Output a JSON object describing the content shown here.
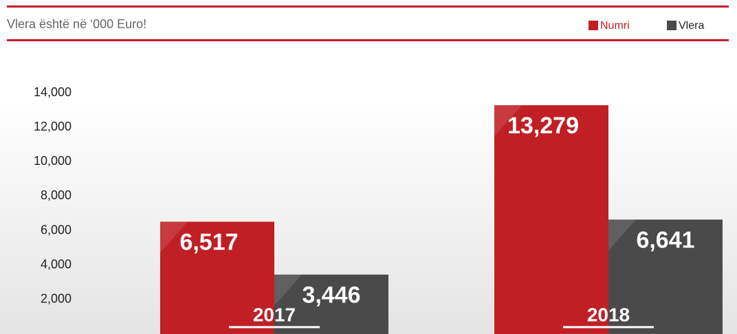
{
  "chart_data": {
    "type": "bar",
    "title": "Vlera është në ‘000 Euro!",
    "categories": [
      "2017",
      "2018"
    ],
    "series": [
      {
        "name": "Numri",
        "color": "#c01f26",
        "values": [
          6517,
          13279
        ],
        "value_labels": [
          "6,517",
          "13,279"
        ]
      },
      {
        "name": "Vlera",
        "color": "#4a4a4a",
        "values": [
          3446,
          6641
        ],
        "value_labels": [
          "3,446",
          "6,641"
        ]
      }
    ],
    "ylim": [
      0,
      14000
    ],
    "yticks": [
      {
        "value": 2000,
        "label": "2,000"
      },
      {
        "value": 4000,
        "label": "4,000"
      },
      {
        "value": 6000,
        "label": "6,000"
      },
      {
        "value": 8000,
        "label": "8,000"
      },
      {
        "value": 10000,
        "label": "10,000"
      },
      {
        "value": 12000,
        "label": "12,000"
      },
      {
        "value": 14000,
        "label": "14,000"
      }
    ],
    "legend": "top-right"
  }
}
